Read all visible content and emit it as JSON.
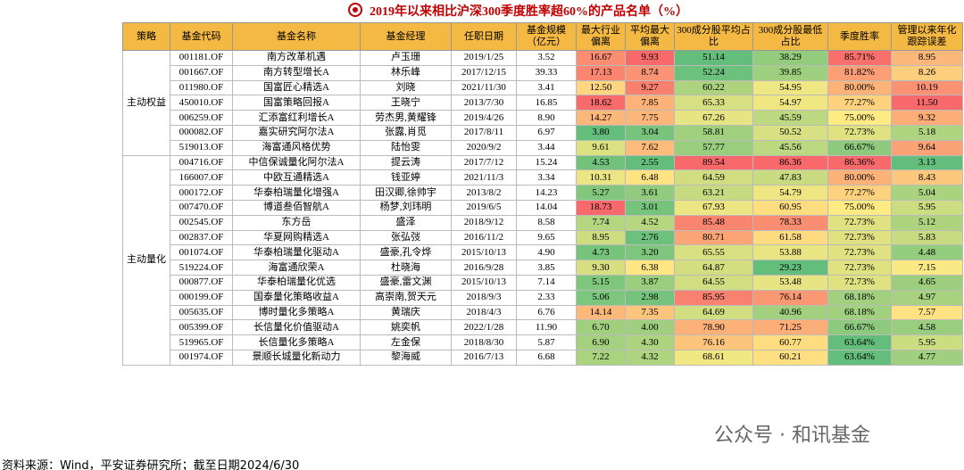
{
  "title": "2019年以来相比沪深300季度胜率超60%的产品名单（%）",
  "table": {
    "headers": [
      "策略",
      "基金代码",
      "基金名称",
      "基金经理",
      "任职日期",
      "基金规模（亿元）",
      "最大行业偏离",
      "平均最大偏离",
      "300成分股平均占比",
      "300成分股最低占比",
      "季度胜率",
      "管理以来年化跟踪误差"
    ],
    "groups": [
      {
        "strategy": "主动权益",
        "rows": [
          [
            "001181.OF",
            "南方改革机遇",
            "卢玉珊",
            "2019/1/25",
            "3.52",
            "16.67",
            "9.93",
            "51.14",
            "38.29",
            "85.71%",
            "8.95"
          ],
          [
            "001667.OF",
            "南方转型增长A",
            "林乐峰",
            "2017/12/15",
            "39.33",
            "17.13",
            "8.74",
            "52.24",
            "39.85",
            "81.82%",
            "8.26"
          ],
          [
            "011980.OF",
            "国富匠心精选A",
            "刘晓",
            "2021/11/30",
            "3.41",
            "12.50",
            "9.27",
            "60.22",
            "54.95",
            "80.00%",
            "10.19"
          ],
          [
            "450010.OF",
            "国富策略回报A",
            "王晓宁",
            "2013/7/30",
            "16.85",
            "18.62",
            "7.85",
            "65.33",
            "54.97",
            "77.27%",
            "11.50"
          ],
          [
            "006259.OF",
            "汇添富红利增长A",
            "劳杰男,黄耀锋",
            "2019/4/26",
            "8.90",
            "14.27",
            "7.75",
            "67.26",
            "45.59",
            "75.00%",
            "9.32"
          ],
          [
            "000082.OF",
            "嘉实研究阿尔法A",
            "张露,肖觅",
            "2017/8/11",
            "6.97",
            "3.80",
            "3.04",
            "58.81",
            "50.52",
            "72.73%",
            "5.18"
          ],
          [
            "519013.OF",
            "海富通风格优势",
            "陆怡雯",
            "2020/9/2",
            "3.44",
            "9.61",
            "7.62",
            "57.77",
            "45.56",
            "66.67%",
            "9.64"
          ]
        ]
      },
      {
        "strategy": "主动量化",
        "rows": [
          [
            "004716.OF",
            "中信保诚量化阿尔法A",
            "提云涛",
            "2017/7/12",
            "15.24",
            "4.53",
            "2.55",
            "89.54",
            "86.36",
            "86.36%",
            "3.13"
          ],
          [
            "166007.OF",
            "中欧互通精选A",
            "钱亚婷",
            "2021/11/3",
            "3.34",
            "10.31",
            "6.48",
            "64.59",
            "47.83",
            "80.00%",
            "8.43"
          ],
          [
            "000172.OF",
            "华泰柏瑞量化增强A",
            "田汉卿,徐帅宇",
            "2013/8/2",
            "14.23",
            "5.27",
            "3.61",
            "63.21",
            "54.79",
            "77.27%",
            "5.04"
          ],
          [
            "007470.OF",
            "博道叁佰智航A",
            "杨梦,刘玮明",
            "2019/6/5",
            "14.04",
            "18.73",
            "3.01",
            "67.93",
            "60.95",
            "75.00%",
            "5.95"
          ],
          [
            "002545.OF",
            "东方岳",
            "盛泽",
            "2018/9/12",
            "8.58",
            "7.74",
            "4.52",
            "85.48",
            "78.33",
            "72.73%",
            "5.12"
          ],
          [
            "002837.OF",
            "华夏网购精选A",
            "张弘弢",
            "2016/11/2",
            "9.65",
            "8.95",
            "2.76",
            "80.71",
            "61.58",
            "72.73%",
            "5.83"
          ],
          [
            "001074.OF",
            "华泰柏瑞量化驱动A",
            "盛豪,孔令烨",
            "2015/10/13",
            "4.90",
            "4.73",
            "3.20",
            "65.55",
            "53.88",
            "72.73%",
            "4.48"
          ],
          [
            "519224.OF",
            "海富通欣荣A",
            "杜晓海",
            "2016/9/28",
            "3.85",
            "9.30",
            "6.38",
            "64.87",
            "29.23",
            "72.73%",
            "7.15"
          ],
          [
            "000877.OF",
            "华泰柏瑞量化优选",
            "盛豪,雷文渊",
            "2015/10/13",
            "7.14",
            "5.15",
            "3.87",
            "64.55",
            "53.48",
            "72.73%",
            "4.65"
          ],
          [
            "000199.OF",
            "国泰量化策略收益A",
            "高崇南,贺天元",
            "2018/9/3",
            "2.33",
            "5.06",
            "2.98",
            "85.95",
            "76.14",
            "68.18%",
            "4.97"
          ],
          [
            "005635.OF",
            "博时量化多策略A",
            "黄瑞庆",
            "2018/4/3",
            "6.76",
            "14.14",
            "7.35",
            "64.69",
            "40.96",
            "68.18%",
            "7.57"
          ],
          [
            "005399.OF",
            "长信量化价值驱动A",
            "姚奕帆",
            "2022/1/28",
            "11.90",
            "6.70",
            "4.00",
            "78.90",
            "71.25",
            "66.67%",
            "4.58"
          ],
          [
            "519965.OF",
            "长信量化多策略A",
            "左金保",
            "2018/8/30",
            "5.87",
            "6.90",
            "4.30",
            "76.16",
            "60.77",
            "63.64%",
            "5.95"
          ],
          [
            "001974.OF",
            "景顺长城量化新动力",
            "黎海威",
            "2016/7/13",
            "6.68",
            "7.22",
            "4.32",
            "68.61",
            "60.21",
            "63.64%",
            "4.77"
          ]
        ]
      }
    ]
  },
  "watermark": "公众号 · 和讯基金",
  "source": "资料来源：Wind，平安证券研究所；截至日期2024/6/30"
}
